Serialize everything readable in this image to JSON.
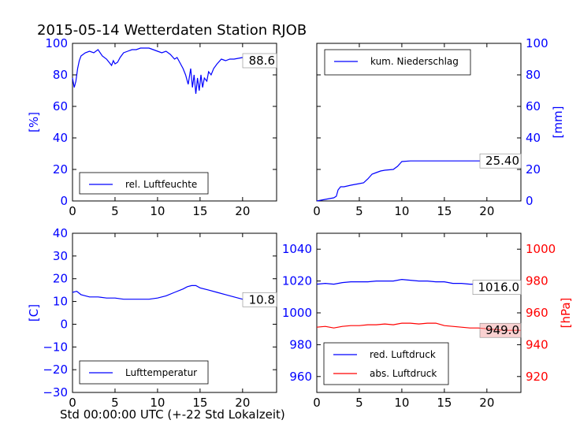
{
  "title": "2015-05-14 Wetterdaten Station RJOB",
  "xlabel": "Std 00:00:00 UTC (+-22 Std Lokalzeit)",
  "colors": {
    "blue": "#0000ff",
    "red": "#ff0000",
    "black": "#000000"
  },
  "chart_data": [
    {
      "type": "line",
      "panel": "top-left",
      "xlim": [
        0,
        24
      ],
      "ylim": [
        0,
        100
      ],
      "xticks": [
        "0",
        "5",
        "10",
        "15",
        "20"
      ],
      "yticks": [
        "0",
        "20",
        "40",
        "60",
        "80",
        "100"
      ],
      "ylabel": "[%]",
      "y_axis_side": "left",
      "last_value_label": "88.6",
      "legend": {
        "placement": "lower-left"
      },
      "series": [
        {
          "name": "rel. Luftfeuchte",
          "color": "#0000ff",
          "x": [
            0,
            0.2,
            0.4,
            0.6,
            0.8,
            1,
            1.5,
            2,
            2.5,
            3,
            3.5,
            4,
            4.3,
            4.6,
            4.8,
            5,
            5.3,
            5.6,
            6,
            6.5,
            7,
            7.5,
            8,
            8.5,
            9,
            9.5,
            10,
            10.5,
            11,
            11.5,
            12,
            12.3,
            12.6,
            13,
            13.3,
            13.6,
            13.9,
            14.1,
            14.3,
            14.5,
            14.7,
            14.9,
            15.1,
            15.3,
            15.5,
            15.8,
            16,
            16.3,
            16.6,
            17,
            17.5,
            18,
            18.5,
            19,
            20,
            21,
            22,
            23,
            24
          ],
          "y": [
            78,
            72,
            76,
            84,
            89,
            92,
            94,
            95,
            94,
            96,
            92,
            90,
            88,
            86,
            89,
            87,
            88,
            91,
            94,
            95,
            96,
            96,
            97,
            97,
            97,
            96,
            95,
            94,
            95,
            93,
            90,
            91,
            88,
            84,
            80,
            74,
            84,
            72,
            80,
            68,
            78,
            70,
            80,
            72,
            78,
            76,
            82,
            80,
            84,
            87,
            90,
            89,
            90,
            90,
            91,
            92,
            92,
            90,
            89
          ]
        }
      ]
    },
    {
      "type": "line",
      "panel": "top-right",
      "xlim": [
        0,
        24
      ],
      "ylim": [
        0,
        100
      ],
      "xticks": [
        "0",
        "5",
        "10",
        "15",
        "20"
      ],
      "yticks": [
        "0",
        "20",
        "40",
        "60",
        "80",
        "100"
      ],
      "ylabel": "[mm]",
      "y_axis_side": "right",
      "last_value_label": "25.40",
      "legend": {
        "placement": "upper-left"
      },
      "series": [
        {
          "name": "kum. Niederschlag",
          "color": "#0000ff",
          "x": [
            0,
            1,
            2,
            2.3,
            2.5,
            2.8,
            3.2,
            4,
            5,
            5.5,
            6,
            6.5,
            7,
            7.5,
            8,
            9,
            9.5,
            10,
            11,
            12,
            15,
            20,
            24
          ],
          "y": [
            0,
            1,
            2,
            3,
            7,
            9,
            9,
            10,
            11,
            11.5,
            14,
            17,
            18,
            19,
            19.5,
            20,
            22,
            25,
            25.4,
            25.4,
            25.4,
            25.4,
            25.4
          ]
        }
      ]
    },
    {
      "type": "line",
      "panel": "bottom-left",
      "xlim": [
        0,
        24
      ],
      "ylim": [
        -30,
        40
      ],
      "xticks": [
        "0",
        "5",
        "10",
        "15",
        "20"
      ],
      "yticks": [
        "−30",
        "−20",
        "−10",
        "0",
        "10",
        "20",
        "30",
        "40"
      ],
      "ylabel": "[C]",
      "y_axis_side": "left",
      "last_value_label": "10.8",
      "legend": {
        "placement": "lower-left"
      },
      "series": [
        {
          "name": "Lufttemperatur",
          "color": "#0000ff",
          "x": [
            0,
            0.5,
            1,
            2,
            3,
            4,
            5,
            6,
            7,
            8,
            9,
            10,
            11,
            12,
            13,
            13.5,
            14,
            14.5,
            15,
            16,
            17,
            18,
            19,
            20,
            21,
            22,
            23,
            24
          ],
          "y": [
            14,
            14.5,
            13,
            12,
            12,
            11.5,
            11.5,
            11,
            11,
            11,
            11,
            11.5,
            12.5,
            14,
            15.5,
            16.5,
            17,
            17,
            16,
            15,
            14,
            13,
            12,
            11,
            11,
            11,
            10.8,
            10.8
          ]
        }
      ]
    },
    {
      "type": "line",
      "panel": "bottom-right",
      "xlim": [
        0,
        24
      ],
      "ylim": [
        950,
        1050
      ],
      "y2lim": [
        910,
        1010
      ],
      "xticks": [
        "0",
        "5",
        "10",
        "15",
        "20"
      ],
      "yticks": [
        "960",
        "980",
        "1000",
        "1020",
        "1040"
      ],
      "y2ticks": [
        "920",
        "940",
        "960",
        "980",
        "1000"
      ],
      "y2label": "[hPa]",
      "last_value_label": "1016.0",
      "last_value_label_2": "949.0",
      "legend": {
        "placement": "lower-left"
      },
      "series": [
        {
          "name": "red. Luftdruck",
          "axis": "left",
          "color": "#0000ff",
          "x": [
            0,
            1,
            2,
            3,
            4,
            5,
            6,
            7,
            8,
            9,
            10,
            11,
            12,
            13,
            14,
            15,
            16,
            17,
            18,
            19,
            20,
            21,
            22,
            23,
            24
          ],
          "y": [
            1018,
            1018.5,
            1018,
            1019,
            1019.5,
            1019.5,
            1019.5,
            1020,
            1020,
            1020,
            1021,
            1020.5,
            1020,
            1020,
            1019.5,
            1019.5,
            1018.5,
            1018.5,
            1018,
            1018,
            1017.5,
            1017,
            1016.5,
            1016,
            1016
          ]
        },
        {
          "name": "abs. Luftdruck",
          "axis": "right",
          "color": "#ff0000",
          "x": [
            0,
            1,
            2,
            3,
            4,
            5,
            6,
            7,
            8,
            9,
            10,
            11,
            12,
            13,
            14,
            15,
            16,
            17,
            18,
            19,
            20,
            21,
            22,
            23,
            24
          ],
          "y": [
            951,
            951.5,
            950.5,
            951.5,
            952,
            952,
            952.5,
            952.5,
            953,
            952.5,
            953.5,
            953.5,
            953,
            953.5,
            953.5,
            952,
            951.5,
            951,
            950.5,
            950.5,
            950,
            949.5,
            949,
            949,
            949
          ]
        }
      ]
    }
  ]
}
